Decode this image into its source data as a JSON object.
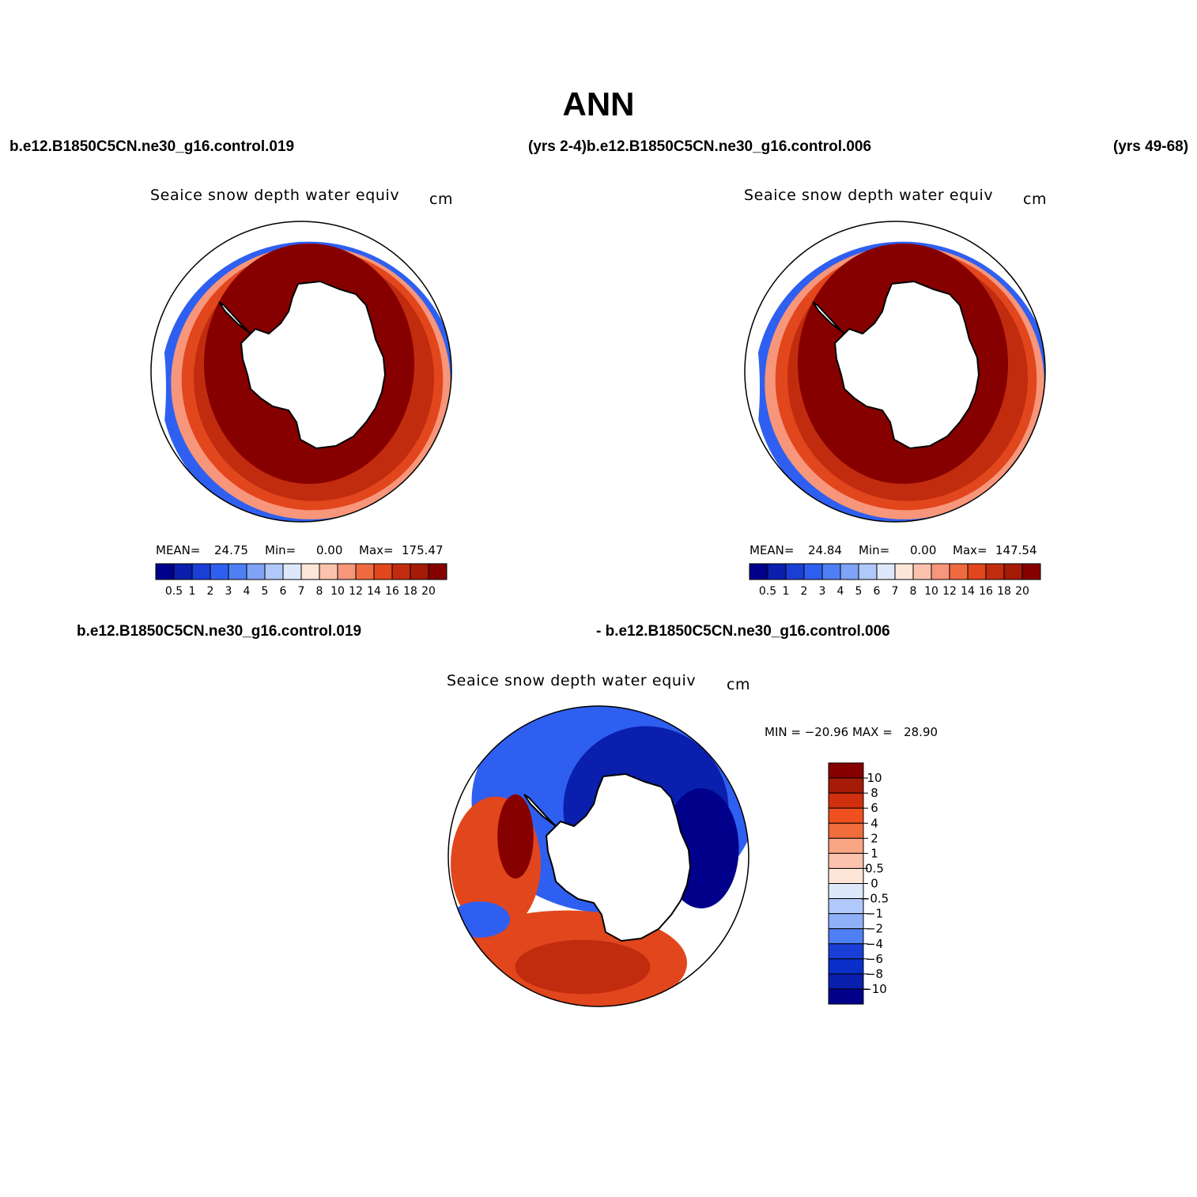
{
  "title": "ANN",
  "case_labels": {
    "top_left": "b.e12.B1850C5CN.ne30_g16.control.019",
    "top_middle": "(yrs 2-4)b.e12.B1850C5CN.ne30_g16.control.006",
    "top_right": "(yrs 49-68)",
    "diff_left": "b.e12.B1850C5CN.ne30_g16.control.019",
    "diff_right": "- b.e12.B1850C5CN.ne30_g16.control.006"
  },
  "panels": [
    {
      "title": "Seaice snow depth water equiv",
      "units": "cm",
      "stats": {
        "mean_label": "MEAN=",
        "mean": "24.75",
        "min_label": "Min=",
        "min": "0.00",
        "max_label": "Max=",
        "max": "175.47"
      }
    },
    {
      "title": "Seaice snow depth water equiv",
      "units": "cm",
      "stats": {
        "mean_label": "MEAN=",
        "mean": "24.84",
        "min_label": "Min=",
        "min": "0.00",
        "max_label": "Max=",
        "max": "147.54"
      }
    }
  ],
  "diff_panel": {
    "title": "Seaice snow depth water equiv",
    "units": "cm",
    "minmax": "MIN = −20.96 MAX =   28.90"
  },
  "colorbar_abs": {
    "labels": [
      "0.5",
      "1",
      "2",
      "3",
      "4",
      "5",
      "6",
      "7",
      "8",
      "10",
      "12",
      "14",
      "16",
      "18",
      "20"
    ],
    "colors": [
      "#00008b",
      "#0a1fae",
      "#1a3fd6",
      "#2f5ff0",
      "#4f7ff5",
      "#7fa3f7",
      "#b0c8fa",
      "#dde9fb",
      "#fde6d8",
      "#fbc3ad",
      "#f7967a",
      "#f06a40",
      "#e2461d",
      "#c12c0e",
      "#a51b08",
      "#870000"
    ]
  },
  "colorbar_diff": {
    "labels": [
      "10",
      "8",
      "6",
      "4",
      "2",
      "1",
      "0.5",
      "0",
      "−0.5",
      "−1",
      "−2",
      "−4",
      "−6",
      "−8",
      "−10"
    ],
    "colors": [
      "#870000",
      "#a51b08",
      "#d1300f",
      "#f0501f",
      "#f26d3c",
      "#f8a584",
      "#fbc3ad",
      "#fde6d8",
      "#dde9fb",
      "#b0c8fa",
      "#8fb0f7",
      "#4f7ff5",
      "#1a3fd6",
      "#0a2fc8",
      "#0a1fae",
      "#00008b"
    ]
  },
  "map_colors": {
    "dark_red": "#870000",
    "red": "#c12c0e",
    "orange": "#e2461d",
    "salmon": "#f7967a",
    "blue": "#2f5ff0",
    "dark_blue": "#0a1fae",
    "navy": "#00008b"
  }
}
